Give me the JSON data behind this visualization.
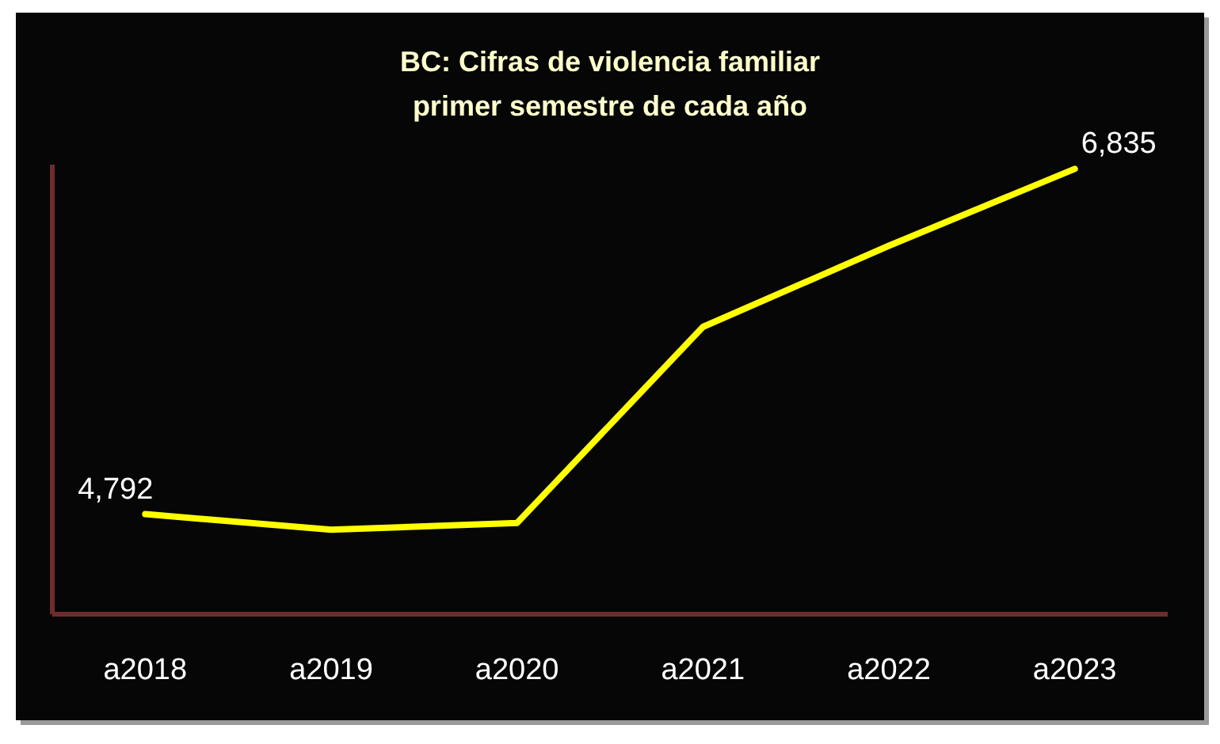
{
  "chart_data": {
    "type": "line",
    "title": "BC: Cifras de violencia familiar\nprimer semestre de cada año",
    "categories": [
      "a2018",
      "a2019",
      "a2020",
      "a2021",
      "a2022",
      "a2023"
    ],
    "series": [
      {
        "color": "#ffff00",
        "values": [
          4792,
          4700,
          4740,
          5900,
          6380,
          6835
        ],
        "value_labels": [
          "4,792",
          null,
          null,
          null,
          null,
          "6,835"
        ]
      }
    ],
    "ylim": [
      4200,
      6860
    ],
    "line_style": "solid",
    "tick_labels": "x"
  }
}
